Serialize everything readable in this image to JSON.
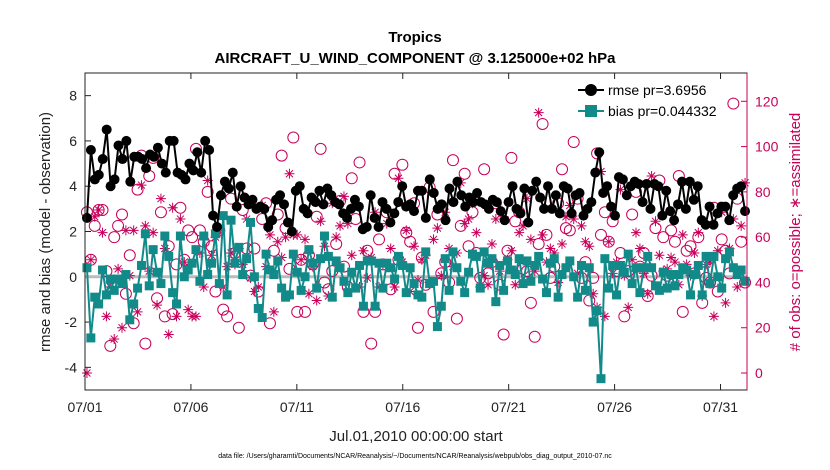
{
  "chart_data": {
    "type": "line",
    "title": "Tropics",
    "subtitle": "AIRCRAFT_U_WIND_COMPONENT @ 3.125000e+02 hPa",
    "xlabel": "Jul.01,2010 00:00:00 start",
    "ylabel_left": "rmse and bias (model - observation)",
    "ylabel_right": "# of obs: o=possible; ∗=assimilated",
    "x_tick_labels": [
      "07/01",
      "07/06",
      "07/11",
      "07/16",
      "07/21",
      "07/26",
      "07/31"
    ],
    "x_tick_days": [
      1,
      6,
      11,
      16,
      21,
      26,
      31
    ],
    "xlim": [
      1,
      32.25
    ],
    "ylim_left": [
      -5,
      9
    ],
    "y_ticks_left": [
      -4,
      -2,
      0,
      2,
      4,
      6,
      8
    ],
    "ylim_right": [
      -7.5,
      132.5
    ],
    "y_ticks_right": [
      0,
      20,
      40,
      60,
      80,
      100,
      120
    ],
    "legend": [
      "rmse pr=3.6956",
      "bias pr=0.044332"
    ],
    "legend_location": "top-right",
    "colors": {
      "rmse": "#000000",
      "bias": "#138a8a",
      "obs": "#c8005a",
      "zero_line": "#bbbbbb"
    },
    "series": [
      {
        "name": "rmse",
        "axis": "left",
        "values": [
          2.6,
          5.6,
          4.3,
          4.5,
          5.2,
          6.5,
          4.0,
          4.3,
          5.8,
          5.2,
          6.0,
          4.2,
          5.3,
          5.3,
          5.2,
          4.8,
          5.4,
          5.3,
          5.7,
          5.0,
          4.6,
          6.0,
          6.0,
          4.6,
          4.5,
          4.3,
          5.0,
          4.7,
          5.5,
          4.6,
          6.0,
          5.6,
          2.7,
          2.2,
          3.6,
          4.2,
          3.9,
          4.6,
          3.1,
          4.0,
          3.5,
          3.2,
          3.4,
          3.0,
          3.1,
          3.0,
          2.2,
          2.5,
          3.4,
          3.6,
          3.2,
          2.4,
          2.0,
          3.8,
          4.0,
          3.0,
          2.8,
          3.5,
          3.3,
          3.8,
          3.2,
          3.9,
          3.6,
          3.3,
          3.2,
          2.8,
          2.6,
          3.0,
          3.4,
          3.1,
          2.1,
          2.2,
          3.6,
          2.6,
          2.2,
          3.3,
          3.0,
          2.4,
          2.8,
          3.3,
          4.0,
          3.1,
          3.2,
          2.9,
          3.8,
          3.8,
          2.6,
          4.3,
          3.7,
          3.0,
          3.2,
          2.5,
          3.9,
          3.3,
          4.2,
          3.6,
          3.1,
          3.5,
          3.3,
          3.7,
          3.3,
          3.2,
          3.0,
          3.4,
          3.3,
          2.9,
          2.5,
          3.3,
          4.0,
          3.0,
          2.8,
          3.9,
          2.4,
          3.8,
          4.2,
          3.5,
          3.0,
          4.0,
          3.0,
          3.6,
          2.8,
          4.0,
          3.9,
          2.8,
          3.6,
          3.7,
          2.7,
          3.0,
          3.3,
          4.6,
          5.5,
          3.7,
          4.0,
          3.1,
          2.7,
          4.4,
          4.3,
          3.6,
          4.0,
          4.2,
          4.1,
          3.3,
          4.1,
          3.0,
          4.1,
          4.0,
          2.7,
          3.8,
          2.9,
          2.5,
          3.2,
          4.2,
          3.0,
          4.2,
          3.4,
          4.0,
          2.5,
          2.3,
          3.1,
          2.3,
          2.8,
          3.1,
          3.1,
          2.5,
          3.6,
          3.9,
          4.0,
          2.9
        ]
      },
      {
        "name": "bias",
        "axis": "left",
        "values": [
          0.4,
          -2.7,
          -0.9,
          -1.2,
          0.3,
          -0.8,
          -0.1,
          -0.6,
          -0.1,
          -0.3,
          0.1,
          -1.9,
          -1.2,
          -0.5,
          0.5,
          1.9,
          -0.4,
          1.2,
          0.2,
          -0.3,
          1.8,
          0.9,
          -0.7,
          -1.2,
          1.8,
          0.0,
          0.3,
          0.6,
          1.2,
          -0.2,
          1.8,
          0.1,
          0.6,
          1.9,
          -0.3,
          2.7,
          -0.8,
          2.5,
          0.6,
          1.3,
          0.1,
          0.8,
          2.4,
          0.0,
          -1.4,
          -1.8,
          1.0,
          0.3,
          0.1,
          0.7,
          -0.5,
          -0.9,
          -0.8,
          1.0,
          0.2,
          -0.6,
          0.0,
          1.2,
          0.6,
          -0.5,
          0.8,
          1.8,
          0.9,
          -0.9,
          0.7,
          0.4,
          -0.2,
          -0.7,
          0.2,
          -0.5,
          0.5,
          -1.3,
          0.7,
          0.7,
          -1.3,
          0.6,
          -0.5,
          0.6,
          0.4,
          -0.1,
          0.9,
          0.5,
          -0.7,
          0.4,
          -0.3,
          -0.8,
          -0.9,
          1.1,
          -0.3,
          -0.2,
          -2.2,
          -1.3,
          0.8,
          -0.6,
          1.1,
          0.4,
          -0.2,
          -0.7,
          0.2,
          1.0,
          0.9,
          -0.5,
          1.1,
          0.6,
          0.8,
          -1.1,
          0.5,
          -0.6,
          0.7,
          0.3,
          0.1,
          0.8,
          -0.3,
          0.7,
          -0.2,
          0.5,
          0.9,
          -0.1,
          -0.7,
          0.6,
          0.8,
          -0.9,
          0.1,
          0.4,
          0.7,
          0.0,
          -0.9,
          0.5,
          -0.6,
          0.4,
          -2.0,
          -1.5,
          -4.5,
          0.8,
          -0.5,
          0.5,
          -0.8,
          0.5,
          0.2,
          1.0,
          -0.3,
          0.4,
          -0.7,
          0.4,
          0.9,
          0.4,
          -0.4,
          -0.6,
          0.2,
          -0.5,
          0.1,
          -0.4,
          0.1,
          0.4,
          0.3,
          -0.8,
          0.1,
          0.5,
          -0.8,
          0.9,
          -0.3,
          0.9,
          0.0,
          -0.5,
          0.8,
          1.1,
          0.4,
          0.1,
          0.3,
          -0.2
        ]
      },
      {
        "name": "possible",
        "axis": "right",
        "marker": "circle",
        "values": [
          71,
          50,
          65,
          72,
          72,
          45,
          12,
          60,
          65,
          70,
          35,
          52,
          22,
          81,
          96,
          13,
          87,
          95,
          33,
          71,
          25,
          56,
          26,
          48,
          73,
          50,
          63,
          60,
          99,
          63,
          58,
          80,
          56,
          36,
          63,
          28,
          25,
          77,
          53,
          20,
          72,
          55,
          43,
          55,
          36,
          68,
          75,
          22,
          54,
          70,
          96,
          64,
          46,
          104,
          27,
          50,
          27,
          52,
          48,
          69,
          99,
          40,
          37,
          45,
          57,
          76,
          47,
          38,
          86,
          68,
          93,
          27,
          54,
          13,
          27,
          59,
          48,
          71,
          37,
          88,
          50,
          92,
          62,
          58,
          75,
          20,
          51,
          39,
          82,
          27,
          70,
          44,
          49,
          40,
          94,
          24,
          65,
          88,
          56,
          71,
          53,
          42,
          90,
          44,
          49,
          75,
          39,
          17,
          54,
          95,
          67,
          71,
          46,
          45,
          31,
          16,
          57,
          110,
          61,
          42,
          47,
          75,
          90,
          64,
          63,
          102,
          77,
          42,
          49,
          32,
          42,
          97,
          61,
          71,
          58,
          67,
          45,
          53,
          25,
          45,
          70,
          80,
          47,
          53,
          34,
          43,
          64,
          85,
          60,
          43,
          63,
          58,
          87,
          27,
          54,
          56,
          44,
          60,
          31,
          42,
          40,
          73,
          36,
          59,
          54,
          44,
          119,
          77,
          58,
          40
        ]
      },
      {
        "name": "assimilated",
        "axis": "right",
        "marker": "asterisk",
        "values": [
          0,
          50,
          69,
          72,
          62,
          25,
          38,
          15,
          46,
          20,
          63,
          43,
          63,
          27,
          83,
          65,
          45,
          62,
          30,
          77,
          55,
          17,
          73,
          25,
          68,
          49,
          28,
          25,
          25,
          53,
          38,
          85,
          52,
          60,
          62,
          38,
          47,
          53,
          48,
          55,
          48,
          68,
          42,
          36,
          38,
          74,
          47,
          61,
          27,
          58,
          51,
          60,
          88,
          61,
          61,
          50,
          59,
          35,
          47,
          32,
          67,
          56,
          34,
          75,
          60,
          65,
          78,
          66,
          52,
          75,
          38,
          54,
          42,
          51,
          71,
          38,
          48,
          66,
          55,
          38,
          86,
          49,
          63,
          36,
          56,
          41,
          50,
          52,
          40,
          59,
          64,
          43,
          71,
          55,
          47,
          53,
          84,
          66,
          68,
          75,
          62,
          38,
          43,
          39,
          57,
          68,
          45,
          69,
          50,
          54,
          39,
          62,
          65,
          77,
          59,
          45,
          115,
          61,
          49,
          55,
          53,
          40,
          57,
          69,
          74,
          68,
          44,
          65,
          58,
          56,
          35,
          29,
          89,
          25,
          58,
          44,
          49,
          81,
          43,
          29,
          50,
          62,
          55,
          44,
          35,
          87,
          67,
          52,
          45,
          46,
          51,
          49,
          39,
          61,
          48,
          43,
          53,
          62,
          34,
          48,
          49,
          25,
          54,
          71,
          31,
          55,
          68,
          38,
          65,
          84
        ]
      }
    ]
  },
  "footer": {
    "note": "data file: /Users/gharamti/Documents/NCAR/Reanalysis/~/Documents/NCAR/Reanalysis/webpub/obs_diag_output_2010-07.nc"
  }
}
